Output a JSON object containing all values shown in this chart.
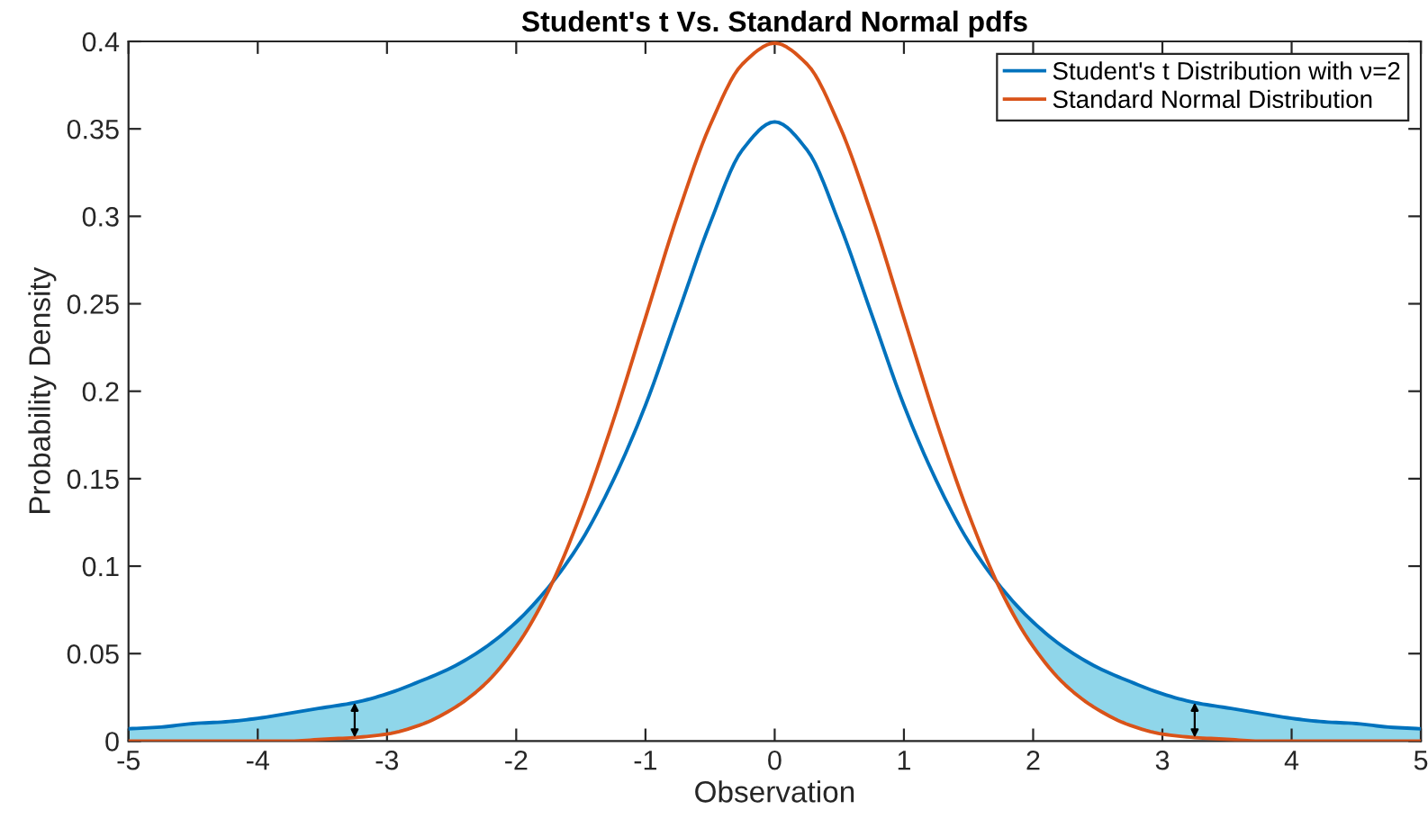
{
  "chart_data": {
    "type": "line",
    "title": "Student's t Vs. Standard Normal pdfs",
    "xlabel": "Observation",
    "ylabel": "Probability Density",
    "x": [
      -5,
      -4.75,
      -4.5,
      -4.25,
      -4,
      -3.75,
      -3.5,
      -3.25,
      -3,
      -2.75,
      -2.5,
      -2.25,
      -2,
      -1.75,
      -1.5,
      -1.25,
      -1,
      -0.75,
      -0.5,
      -0.25,
      0,
      0.25,
      0.5,
      0.75,
      1,
      1.25,
      1.5,
      1.75,
      2,
      2.25,
      2.5,
      2.75,
      3,
      3.25,
      3.5,
      3.75,
      4,
      4.25,
      4.5,
      4.75,
      5
    ],
    "series": [
      {
        "name": "Student's t Distribution with ν=2",
        "color": "#0072bd",
        "values": [
          0.007,
          0.008,
          0.01,
          0.011,
          0.013,
          0.016,
          0.019,
          0.022,
          0.027,
          0.034,
          0.042,
          0.053,
          0.068,
          0.088,
          0.114,
          0.149,
          0.192,
          0.244,
          0.296,
          0.338,
          0.354,
          0.338,
          0.296,
          0.244,
          0.192,
          0.149,
          0.114,
          0.088,
          0.068,
          0.053,
          0.042,
          0.034,
          0.027,
          0.022,
          0.019,
          0.016,
          0.013,
          0.011,
          0.01,
          0.008,
          0.007
        ],
        "upper": [
          0.007,
          0.008,
          0.01,
          0.011,
          0.013,
          0.016,
          0.019,
          0.022,
          0.027,
          0.034,
          0.042,
          0.053,
          0.068,
          0.088,
          null,
          null,
          null,
          null,
          null,
          null,
          null,
          null,
          null,
          null,
          null,
          null,
          null,
          0.088,
          0.068,
          0.053,
          0.042,
          0.034,
          0.027,
          0.022,
          0.019,
          0.016,
          0.013,
          0.011,
          0.01,
          0.008,
          0.007
        ],
        "lower": [
          0,
          0,
          0,
          0,
          0,
          0,
          0.001,
          0.002,
          0.004,
          0.009,
          0.018,
          0.032,
          0.054,
          0.086,
          null,
          null,
          null,
          null,
          null,
          null,
          null,
          null,
          null,
          null,
          null,
          null,
          null,
          0.086,
          0.054,
          0.032,
          0.018,
          0.009,
          0.004,
          0.002,
          0.001,
          0,
          0,
          0,
          0,
          0,
          0
        ]
      },
      {
        "name": "Standard Normal Distribution",
        "color": "#d95319",
        "values": [
          0,
          0,
          0,
          0,
          0,
          0,
          0.001,
          0.002,
          0.004,
          0.009,
          0.018,
          0.032,
          0.054,
          0.086,
          0.13,
          0.183,
          0.242,
          0.301,
          0.352,
          0.387,
          0.399,
          0.387,
          0.352,
          0.301,
          0.242,
          0.183,
          0.13,
          0.086,
          0.054,
          0.032,
          0.018,
          0.009,
          0.004,
          0.002,
          0.001,
          0,
          0,
          0,
          0,
          0,
          0
        ]
      }
    ],
    "xlim": [
      -5,
      5
    ],
    "ylim": [
      0,
      0.4
    ],
    "xticks": [
      -5,
      -4,
      -3,
      -2,
      -1,
      0,
      1,
      2,
      3,
      4,
      5
    ],
    "yticks": [
      0,
      0.05,
      0.1,
      0.15,
      0.2,
      0.25,
      0.3,
      0.35,
      0.4
    ],
    "legend": "top right",
    "grid": false
  }
}
